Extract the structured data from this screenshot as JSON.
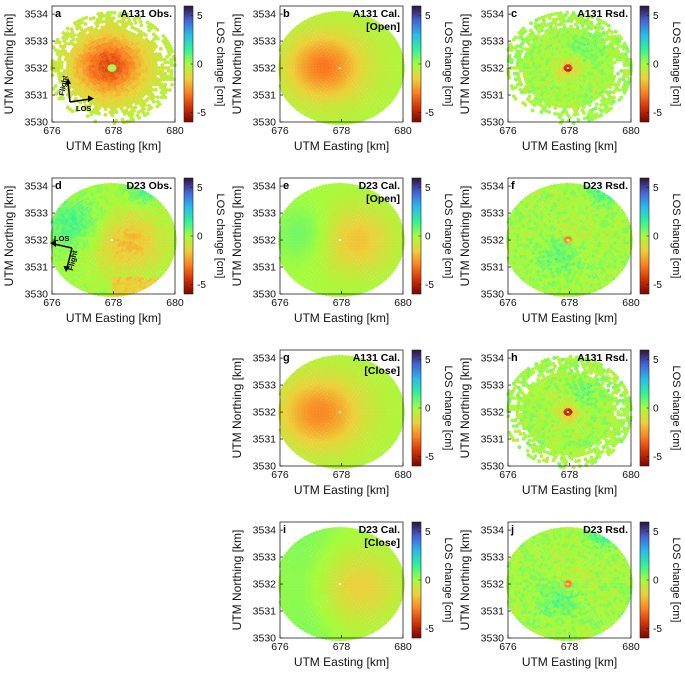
{
  "chart_data": [
    {
      "id": "a",
      "label": "a",
      "title": "A131 Obs.",
      "subtitle": "",
      "type": "scatter",
      "kind": "obs",
      "sat": "A131",
      "xlabel": "UTM Easting [km]",
      "ylabel": "UTM Northing [km]",
      "xlim": [
        676,
        680
      ],
      "ylim": [
        3530,
        3534.3
      ],
      "xticks": [
        "676",
        "678",
        "680"
      ],
      "yticks": [
        "3530",
        "3531",
        "3532",
        "3533",
        "3534"
      ],
      "colorbar": {
        "label": "LOS change [cm]",
        "range": [
          -6,
          6
        ],
        "ticks": [
          "5",
          "0",
          "-5"
        ]
      },
      "arrows": {
        "a1": "Flight",
        "a2": "LOS"
      }
    },
    {
      "id": "b",
      "label": "b",
      "title": "A131 Cal.",
      "subtitle": "[Open]",
      "type": "scatter",
      "kind": "calA",
      "sat": "A131",
      "xlabel": "UTM Easting [km]",
      "ylabel": "UTM Northing [km]",
      "xlim": [
        676,
        680
      ],
      "ylim": [
        3530,
        3534.3
      ],
      "xticks": [
        "676",
        "678",
        "680"
      ],
      "yticks": [
        "3530",
        "3531",
        "3532",
        "3533",
        "3534"
      ],
      "colorbar": {
        "label": "LOS change [cm]",
        "range": [
          -6,
          6
        ],
        "ticks": [
          "5",
          "0",
          "-5"
        ]
      }
    },
    {
      "id": "c",
      "label": "c",
      "title": "A131 Rsd.",
      "subtitle": "",
      "type": "scatter",
      "kind": "rsd",
      "sat": "A131",
      "xlabel": "UTM Easting [km]",
      "ylabel": "UTM Northing [km]",
      "xlim": [
        676,
        680
      ],
      "ylim": [
        3530,
        3534.3
      ],
      "xticks": [
        "676",
        "678",
        "680"
      ],
      "yticks": [
        "3530",
        "3531",
        "3532",
        "3533",
        "3534"
      ],
      "colorbar": {
        "label": "LOS change [cm]",
        "range": [
          -6,
          6
        ],
        "ticks": [
          "5",
          "0",
          "-5"
        ]
      }
    },
    {
      "id": "d",
      "label": "d",
      "title": "D23 Obs.",
      "subtitle": "",
      "type": "scatter",
      "kind": "obsD",
      "sat": "D23",
      "xlabel": "UTM Easting [km]",
      "ylabel": "UTM Northing [km]",
      "xlim": [
        676,
        680
      ],
      "ylim": [
        3530,
        3534.3
      ],
      "xticks": [
        "676",
        "678",
        "680"
      ],
      "yticks": [
        "3530",
        "3531",
        "3532",
        "3533",
        "3534"
      ],
      "colorbar": {
        "label": "LOS change [cm]",
        "range": [
          -6,
          6
        ],
        "ticks": [
          "5",
          "0",
          "-5"
        ]
      },
      "arrows": {
        "a1": "LOS",
        "a2": "Flight"
      }
    },
    {
      "id": "e",
      "label": "e",
      "title": "D23 Cal.",
      "subtitle": "[Open]",
      "type": "scatter",
      "kind": "calD",
      "sat": "D23",
      "xlabel": "UTM Easting [km]",
      "ylabel": "UTM Northing [km]",
      "xlim": [
        676,
        680
      ],
      "ylim": [
        3530,
        3534.3
      ],
      "xticks": [
        "676",
        "678",
        "680"
      ],
      "yticks": [
        "3530",
        "3531",
        "3532",
        "3533",
        "3534"
      ],
      "colorbar": {
        "label": "LOS change [cm]",
        "range": [
          -6,
          6
        ],
        "ticks": [
          "5",
          "0",
          "-5"
        ]
      }
    },
    {
      "id": "f",
      "label": "f",
      "title": "D23 Rsd.",
      "subtitle": "",
      "type": "scatter",
      "kind": "rsdD",
      "sat": "D23",
      "xlabel": "UTM Easting [km]",
      "ylabel": "UTM Northing [km]",
      "xlim": [
        676,
        680
      ],
      "ylim": [
        3530,
        3534.3
      ],
      "xticks": [
        "676",
        "678",
        "680"
      ],
      "yticks": [
        "3530",
        "3531",
        "3532",
        "3533",
        "3534"
      ],
      "colorbar": {
        "label": "LOS change [cm]",
        "range": [
          -6,
          6
        ],
        "ticks": [
          "5",
          "0",
          "-5"
        ]
      }
    },
    {
      "id": "g",
      "label": "g",
      "title": "A131 Cal.",
      "subtitle": "[Close]",
      "type": "scatter",
      "kind": "calAC",
      "sat": "A131",
      "xlabel": "UTM Easting [km]",
      "ylabel": "UTM Northing [km]",
      "xlim": [
        676,
        680
      ],
      "ylim": [
        3530,
        3534.3
      ],
      "xticks": [
        "676",
        "678",
        "680"
      ],
      "yticks": [
        "3530",
        "3531",
        "3532",
        "3533",
        "3534"
      ],
      "colorbar": {
        "label": "LOS change [cm]",
        "range": [
          -6,
          6
        ],
        "ticks": [
          "5",
          "0",
          "-5"
        ]
      }
    },
    {
      "id": "h",
      "label": "h",
      "title": "A131 Rsd.",
      "subtitle": "",
      "type": "scatter",
      "kind": "rsd",
      "sat": "A131",
      "xlabel": "UTM Easting [km]",
      "ylabel": "UTM Northing [km]",
      "xlim": [
        676,
        680
      ],
      "ylim": [
        3530,
        3534.3
      ],
      "xticks": [
        "676",
        "678",
        "680"
      ],
      "yticks": [
        "3530",
        "3531",
        "3532",
        "3533",
        "3534"
      ],
      "colorbar": {
        "label": "LOS change [cm]",
        "range": [
          -6,
          6
        ],
        "ticks": [
          "5",
          "0",
          "-5"
        ]
      }
    },
    {
      "id": "i",
      "label": "i",
      "title": "D23 Cal.",
      "subtitle": "[Close]",
      "type": "scatter",
      "kind": "calDC",
      "sat": "D23",
      "xlabel": "UTM Easting [km]",
      "ylabel": "UTM Northing [km]",
      "xlim": [
        676,
        680
      ],
      "ylim": [
        3530,
        3534.3
      ],
      "xticks": [
        "676",
        "678",
        "680"
      ],
      "yticks": [
        "3530",
        "3531",
        "3532",
        "3533",
        "3534"
      ],
      "colorbar": {
        "label": "LOS change [cm]",
        "range": [
          -6,
          6
        ],
        "ticks": [
          "5",
          "0",
          "-5"
        ]
      }
    },
    {
      "id": "j",
      "label": "j",
      "title": "D23 Rsd.",
      "subtitle": "",
      "type": "scatter",
      "kind": "rsdD",
      "sat": "D23",
      "xlabel": "UTM Easting [km]",
      "ylabel": "UTM Northing [km]",
      "xlim": [
        676,
        680
      ],
      "ylim": [
        3530,
        3534.3
      ],
      "xticks": [
        "676",
        "678",
        "680"
      ],
      "yticks": [
        "3530",
        "3531",
        "3532",
        "3533",
        "3534"
      ],
      "colorbar": {
        "label": "LOS change [cm]",
        "range": [
          -6,
          6
        ],
        "ticks": [
          "5",
          "0",
          "-5"
        ]
      }
    }
  ],
  "colormap": [
    "#7a0403",
    "#d23105",
    "#fb8022",
    "#edd03a",
    "#a4fc3c",
    "#32f298",
    "#28bceb",
    "#4662d7",
    "#30123b"
  ]
}
